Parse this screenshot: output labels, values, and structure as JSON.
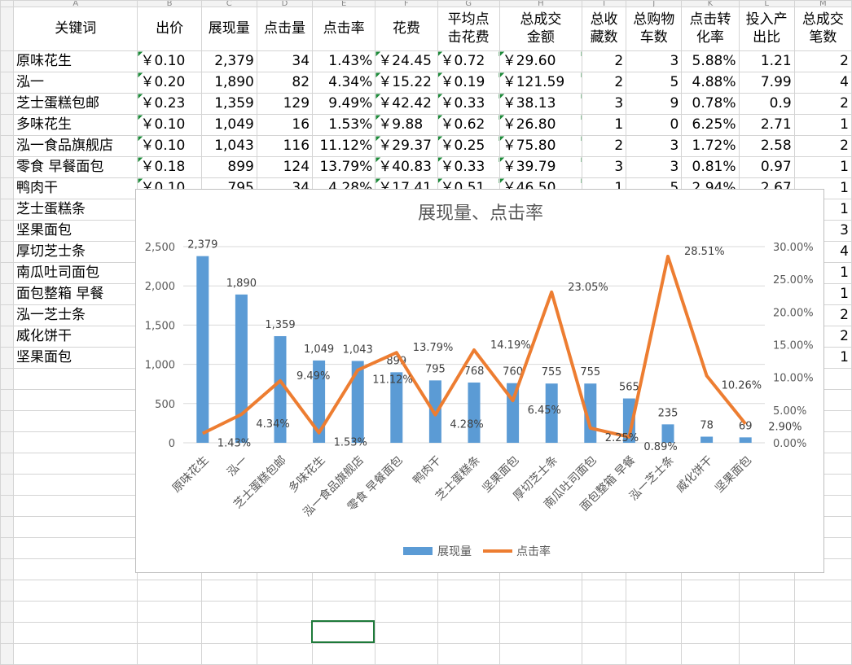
{
  "sheet": {
    "headers": [
      "关键词",
      "出价",
      "展现量",
      "点击量",
      "点击率",
      "花费",
      "平均点击花费",
      "总成交金额",
      "总收藏数",
      "总购物车数",
      "点击转化率",
      "投入产出比",
      "总成交笔数"
    ],
    "header_lines": [
      [
        "关键词"
      ],
      [
        "出价"
      ],
      [
        "展现量"
      ],
      [
        "点击量"
      ],
      [
        "点击率"
      ],
      [
        "花费"
      ],
      [
        "平均点",
        "击花费"
      ],
      [
        "总成交",
        "金额"
      ],
      [
        "总收",
        "藏数"
      ],
      [
        "总购物",
        "车数"
      ],
      [
        "点击转",
        "化率"
      ],
      [
        "投入产",
        "出比"
      ],
      [
        "总成交",
        "笔数"
      ]
    ],
    "rows": [
      [
        "原味花生",
        "￥0.10",
        "2,379",
        "34",
        "1.43%",
        "￥24.45",
        "￥0.72",
        "￥29.60",
        "2",
        "3",
        "5.88%",
        "1.21",
        "2"
      ],
      [
        "泓一",
        "￥0.20",
        "1,890",
        "82",
        "4.34%",
        "￥15.22",
        "￥0.19",
        "￥121.59",
        "2",
        "5",
        "4.88%",
        "7.99",
        "4"
      ],
      [
        "芝士蛋糕包邮",
        "￥0.23",
        "1,359",
        "129",
        "9.49%",
        "￥42.42",
        "￥0.33",
        "￥38.13",
        "3",
        "9",
        "0.78%",
        "0.9",
        "2"
      ],
      [
        "多味花生",
        "￥0.10",
        "1,049",
        "16",
        "1.53%",
        "￥9.88",
        "￥0.62",
        "￥26.80",
        "1",
        "0",
        "6.25%",
        "2.71",
        "1"
      ],
      [
        "泓一食品旗舰店",
        "￥0.10",
        "1,043",
        "116",
        "11.12%",
        "￥29.37",
        "￥0.25",
        "￥75.80",
        "2",
        "3",
        "1.72%",
        "2.58",
        "2"
      ],
      [
        "零食 早餐面包",
        "￥0.18",
        "899",
        "124",
        "13.79%",
        "￥40.83",
        "￥0.33",
        "￥39.79",
        "3",
        "3",
        "0.81%",
        "0.97",
        "1"
      ],
      [
        "鸭肉干",
        "￥0.10",
        "795",
        "34",
        "4.28%",
        "￥17.41",
        "￥0.51",
        "￥46.50",
        "1",
        "5",
        "2.94%",
        "2.67",
        "1"
      ],
      [
        "芝士蛋糕条",
        "",
        "",
        "",
        "",
        "",
        "",
        "",
        "",
        "",
        "",
        "",
        "1"
      ],
      [
        "坚果面包",
        "",
        "",
        "",
        "",
        "",
        "",
        "",
        "",
        "",
        "",
        "",
        "3"
      ],
      [
        "厚切芝士条",
        "",
        "",
        "",
        "",
        "",
        "",
        "",
        "",
        "",
        "",
        "",
        "4"
      ],
      [
        "南瓜吐司面包",
        "",
        "",
        "",
        "",
        "",
        "",
        "",
        "",
        "",
        "",
        "",
        "1"
      ],
      [
        "面包整箱 早餐",
        "",
        "",
        "",
        "",
        "",
        "",
        "",
        "",
        "",
        "",
        "",
        "1"
      ],
      [
        "泓一芝士条",
        "",
        "",
        "",
        "",
        "",
        "",
        "",
        "",
        "",
        "",
        "",
        "2"
      ],
      [
        "威化饼干",
        "",
        "",
        "",
        "",
        "",
        "",
        "",
        "",
        "",
        "",
        "",
        "2"
      ],
      [
        "坚果面包",
        "",
        "",
        "",
        "",
        "",
        "",
        "",
        "",
        "",
        "",
        "",
        "1"
      ]
    ],
    "column_letters": [
      "A",
      "B",
      "C",
      "D",
      "E",
      "F",
      "G",
      "H",
      "I",
      "J",
      "K",
      "L",
      "M"
    ]
  },
  "chart_data": {
    "type": "bar+line",
    "title": "展现量、点击率",
    "categories": [
      "原味花生",
      "泓一",
      "芝士蛋糕包邮",
      "多味花生",
      "泓一食品旗舰店",
      "零食 早餐面包",
      "鸭肉干",
      "芝士蛋糕条",
      "坚果面包",
      "厚切芝士条",
      "南瓜吐司面包",
      "面包整箱 早餐",
      "泓一芝士条",
      "威化饼干",
      "坚果面包"
    ],
    "series": [
      {
        "name": "展现量",
        "type": "bar",
        "axis": "left",
        "color": "#5b9bd5",
        "values": [
          2379,
          1890,
          1359,
          1049,
          1043,
          899,
          795,
          768,
          760,
          755,
          755,
          565,
          235,
          78,
          69
        ],
        "labels": [
          "2,379",
          "1,890",
          "1,359",
          "1,049",
          "1,043",
          "899",
          "795",
          "768",
          "760",
          "755",
          "755",
          "565",
          "235",
          "78",
          "69"
        ]
      },
      {
        "name": "点击率",
        "type": "line",
        "axis": "right",
        "color": "#ed7d31",
        "values": [
          1.43,
          4.34,
          9.49,
          1.53,
          11.12,
          13.79,
          4.28,
          14.19,
          6.45,
          23.05,
          2.25,
          0.89,
          28.51,
          10.26,
          2.9
        ],
        "labels": [
          "1.43%",
          "4.34%",
          "9.49%",
          "1.53%",
          "11.12%",
          "13.79%",
          "4.28%",
          "14.19%",
          "6.45%",
          "23.05%",
          "2.25%",
          "0.89%",
          "28.51%",
          "10.26%",
          "2.90%"
        ]
      }
    ],
    "y_left": {
      "min": 0,
      "max": 2500,
      "ticks": [
        "0",
        "500",
        "1,000",
        "1,500",
        "2,000",
        "2,500"
      ]
    },
    "y_right": {
      "min": 0,
      "max": 30,
      "ticks": [
        "0.00%",
        "5.00%",
        "10.00%",
        "15.00%",
        "20.00%",
        "25.00%",
        "30.00%"
      ]
    },
    "grid": true,
    "legend": "bottom"
  }
}
